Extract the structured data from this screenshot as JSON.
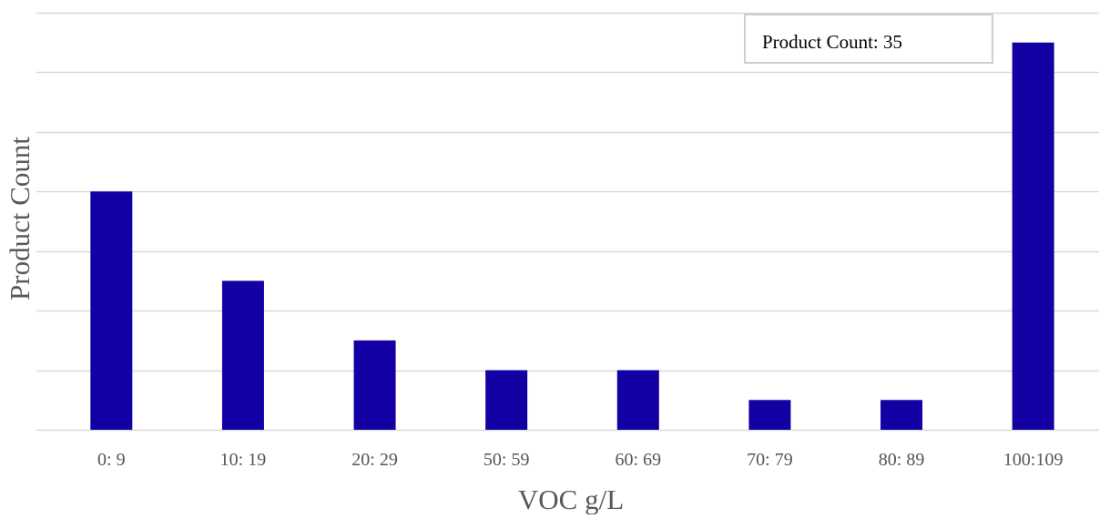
{
  "chart_data": {
    "type": "bar",
    "categories": [
      "0:  9",
      "10: 19",
      "20: 29",
      "50: 59",
      "60: 69",
      "70: 79",
      "80: 89",
      "100:109"
    ],
    "values": [
      8,
      5,
      3,
      2,
      2,
      1,
      1,
      13
    ],
    "xlabel": "VOC g/L",
    "ylabel": "Product Count",
    "ylim": [
      0,
      14
    ],
    "ytick_step": 2,
    "grid": true,
    "bar_color": "#1200A3",
    "grid_color": "#D9D9D9",
    "legend": {
      "label": "Product Count: 35",
      "placement": "top-right"
    }
  }
}
